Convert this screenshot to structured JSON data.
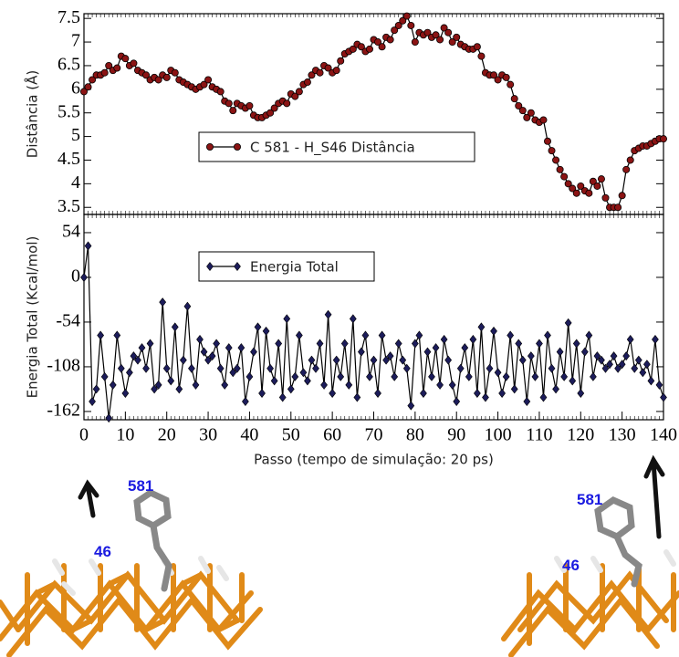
{
  "chart_data": [
    {
      "type": "line",
      "y_label": "Distância (Å)",
      "xlim": [
        0,
        140
      ],
      "ylim": [
        3.35,
        7.6
      ],
      "yticks": [
        3.5,
        4,
        4.5,
        5,
        5.5,
        6,
        6.5,
        7,
        7.5
      ],
      "legend": "center",
      "x": [
        0,
        1,
        2,
        3,
        4,
        5,
        6,
        7,
        8,
        9,
        10,
        11,
        12,
        13,
        14,
        15,
        16,
        17,
        18,
        19,
        20,
        21,
        22,
        23,
        24,
        25,
        26,
        27,
        28,
        29,
        30,
        31,
        32,
        33,
        34,
        35,
        36,
        37,
        38,
        39,
        40,
        41,
        42,
        43,
        44,
        45,
        46,
        47,
        48,
        49,
        50,
        51,
        52,
        53,
        54,
        55,
        56,
        57,
        58,
        59,
        60,
        61,
        62,
        63,
        64,
        65,
        66,
        67,
        68,
        69,
        70,
        71,
        72,
        73,
        74,
        75,
        76,
        77,
        78,
        79,
        80,
        81,
        82,
        83,
        84,
        85,
        86,
        87,
        88,
        89,
        90,
        91,
        92,
        93,
        94,
        95,
        96,
        97,
        98,
        99,
        100,
        101,
        102,
        103,
        104,
        105,
        106,
        107,
        108,
        109,
        110,
        111,
        112,
        113,
        114,
        115,
        116,
        117,
        118,
        119,
        120,
        121,
        122,
        123,
        124,
        125,
        126,
        127,
        128,
        129,
        130,
        131,
        132,
        133,
        134,
        135,
        136,
        137,
        138,
        139,
        140
      ],
      "series": [
        {
          "name": "C 581 - H_S46 Distância",
          "color": "#8b1414",
          "marker": "circle",
          "values": [
            5.95,
            6.05,
            6.2,
            6.3,
            6.3,
            6.35,
            6.5,
            6.4,
            6.45,
            6.7,
            6.65,
            6.5,
            6.55,
            6.4,
            6.35,
            6.3,
            6.2,
            6.25,
            6.2,
            6.3,
            6.25,
            6.4,
            6.35,
            6.2,
            6.15,
            6.1,
            6.05,
            6.0,
            6.05,
            6.1,
            6.2,
            6.05,
            6.0,
            5.95,
            5.75,
            5.7,
            5.55,
            5.7,
            5.65,
            5.6,
            5.65,
            5.45,
            5.4,
            5.4,
            5.45,
            5.5,
            5.6,
            5.7,
            5.75,
            5.7,
            5.9,
            5.85,
            5.95,
            6.1,
            6.15,
            6.3,
            6.4,
            6.35,
            6.5,
            6.45,
            6.35,
            6.4,
            6.6,
            6.75,
            6.8,
            6.85,
            6.95,
            6.9,
            6.8,
            6.85,
            7.05,
            7.0,
            6.9,
            7.1,
            7.05,
            7.25,
            7.35,
            7.45,
            7.55,
            7.35,
            7.0,
            7.2,
            7.15,
            7.2,
            7.1,
            7.15,
            7.05,
            7.3,
            7.2,
            7.0,
            7.1,
            6.95,
            6.9,
            6.85,
            6.85,
            6.9,
            6.7,
            6.35,
            6.3,
            6.3,
            6.2,
            6.3,
            6.25,
            6.1,
            5.8,
            5.65,
            5.55,
            5.4,
            5.5,
            5.35,
            5.3,
            5.35,
            4.9,
            4.7,
            4.5,
            4.3,
            4.15,
            4.0,
            3.9,
            3.8,
            3.95,
            3.85,
            3.8,
            4.05,
            3.95,
            4.1,
            3.7,
            3.5,
            3.5,
            3.5,
            3.75,
            4.3,
            4.5,
            4.7,
            4.75,
            4.8,
            4.8,
            4.85,
            4.9,
            4.95,
            4.95
          ]
        }
      ]
    },
    {
      "type": "line",
      "y_label": "Energia Total (Kcal/mol)",
      "x_label": "Passo (tempo de simulação: 20 ps)",
      "xlim": [
        0,
        140
      ],
      "ylim": [
        -172,
        76
      ],
      "yticks": [
        -162,
        -108,
        -54,
        0,
        54
      ],
      "xticks": [
        0,
        10,
        20,
        30,
        40,
        50,
        60,
        70,
        80,
        90,
        100,
        110,
        120,
        130,
        140
      ],
      "legend": "upper-left",
      "x": [
        0,
        1,
        2,
        3,
        4,
        5,
        6,
        7,
        8,
        9,
        10,
        11,
        12,
        13,
        14,
        15,
        16,
        17,
        18,
        19,
        20,
        21,
        22,
        23,
        24,
        25,
        26,
        27,
        28,
        29,
        30,
        31,
        32,
        33,
        34,
        35,
        36,
        37,
        38,
        39,
        40,
        41,
        42,
        43,
        44,
        45,
        46,
        47,
        48,
        49,
        50,
        51,
        52,
        53,
        54,
        55,
        56,
        57,
        58,
        59,
        60,
        61,
        62,
        63,
        64,
        65,
        66,
        67,
        68,
        69,
        70,
        71,
        72,
        73,
        74,
        75,
        76,
        77,
        78,
        79,
        80,
        81,
        82,
        83,
        84,
        85,
        86,
        87,
        88,
        89,
        90,
        91,
        92,
        93,
        94,
        95,
        96,
        97,
        98,
        99,
        100,
        101,
        102,
        103,
        104,
        105,
        106,
        107,
        108,
        109,
        110,
        111,
        112,
        113,
        114,
        115,
        116,
        117,
        118,
        119,
        120,
        121,
        122,
        123,
        124,
        125,
        126,
        127,
        128,
        129,
        130,
        131,
        132,
        133,
        134,
        135,
        136,
        137,
        138,
        139,
        140
      ],
      "series": [
        {
          "name": "Energia Total",
          "color": "#1c1c5a",
          "marker": "diamond",
          "values": [
            0,
            38,
            -150,
            -135,
            -70,
            -120,
            -170,
            -130,
            -70,
            -110,
            -140,
            -115,
            -95,
            -100,
            -85,
            -110,
            -80,
            -135,
            -130,
            -30,
            -110,
            -125,
            -60,
            -135,
            -100,
            -35,
            -110,
            -130,
            -75,
            -90,
            -100,
            -95,
            -80,
            -110,
            -130,
            -85,
            -115,
            -110,
            -85,
            -150,
            -120,
            -90,
            -60,
            -140,
            -65,
            -110,
            -125,
            -80,
            -145,
            -50,
            -135,
            -120,
            -70,
            -115,
            -125,
            -100,
            -110,
            -80,
            -130,
            -45,
            -140,
            -100,
            -120,
            -80,
            -130,
            -50,
            -145,
            -90,
            -70,
            -120,
            -100,
            -140,
            -70,
            -100,
            -95,
            -120,
            -80,
            -100,
            -110,
            -155,
            -80,
            -70,
            -140,
            -90,
            -120,
            -85,
            -130,
            -75,
            -100,
            -130,
            -150,
            -110,
            -85,
            -120,
            -75,
            -140,
            -60,
            -145,
            -110,
            -65,
            -115,
            -140,
            -120,
            -70,
            -135,
            -80,
            -100,
            -150,
            -95,
            -120,
            -80,
            -145,
            -70,
            -110,
            -135,
            -90,
            -120,
            -55,
            -125,
            -80,
            -140,
            -90,
            -70,
            -120,
            -95,
            -100,
            -110,
            -105,
            -95,
            -110,
            -105,
            -95,
            -75,
            -110,
            -100,
            -115,
            -105,
            -125,
            -75,
            -130,
            -145
          ]
        }
      ]
    }
  ],
  "structures": [
    {
      "labels": [
        "581",
        "46"
      ]
    },
    {
      "labels": [
        "581",
        "46"
      ]
    }
  ]
}
